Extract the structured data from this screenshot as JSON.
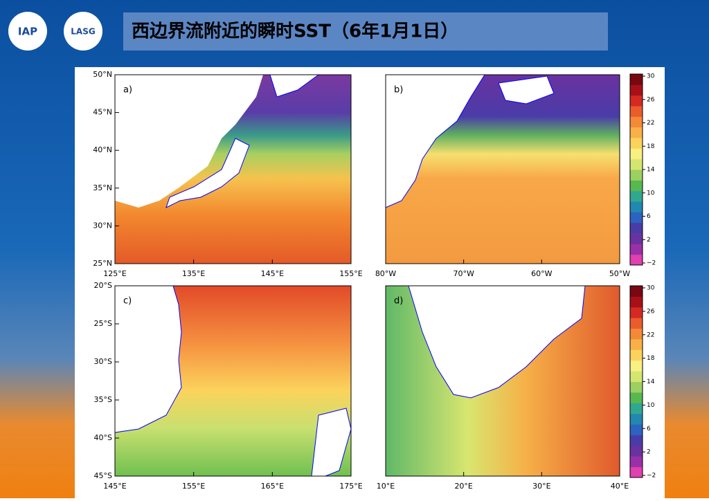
{
  "header": {
    "logos": [
      "IAP",
      "LASG"
    ],
    "title": "西边界流附近的瞬时SST（6年1月1日）"
  },
  "panels": [
    {
      "label": "a)",
      "xtick_labels": [
        "125°E",
        "135°E",
        "145°E",
        "155°E"
      ],
      "ytick_labels": [
        "50°N",
        "45°N",
        "40°N",
        "35°N",
        "30°N",
        "25°N"
      ]
    },
    {
      "label": "b)",
      "xtick_labels": [
        "80°W",
        "70°W",
        "60°W",
        "50°W"
      ]
    },
    {
      "label": "c)",
      "xtick_labels": [
        "145°E",
        "155°E",
        "165°E",
        "175°E"
      ],
      "ytick_labels": [
        "20°S",
        "25°S",
        "30°S",
        "35°S",
        "40°S",
        "45°S"
      ]
    },
    {
      "label": "d)",
      "xtick_labels": [
        "10°E",
        "20°E",
        "30°E",
        "40°E"
      ]
    }
  ],
  "colorbar": {
    "clim": [
      -2,
      30
    ],
    "ticks": [
      30,
      26,
      22,
      18,
      14,
      10,
      6,
      2,
      {
        "value": -2,
        "label": "−2"
      }
    ],
    "colors": [
      "#e040b0",
      "#9a30a8",
      "#6a32a0",
      "#4a3ca8",
      "#2c62c0",
      "#2288b0",
      "#30a890",
      "#58b850",
      "#9cd060",
      "#d4e670",
      "#f8f080",
      "#fbd35c",
      "#f9b048",
      "#f48a38",
      "#ea5c2c",
      "#d42a22",
      "#a81018",
      "#7a0810"
    ]
  }
}
